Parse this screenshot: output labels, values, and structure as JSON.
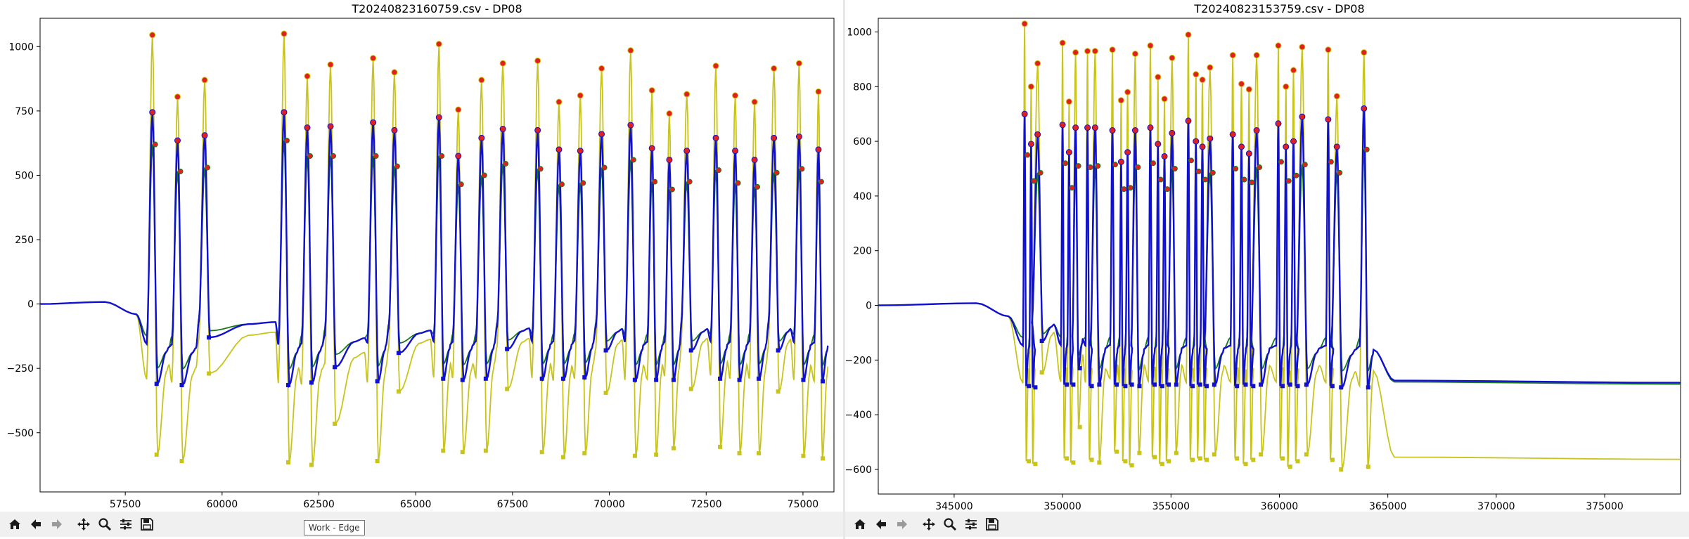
{
  "tooltip": "Work - Edge",
  "toolbar": {
    "icons": [
      "home-icon",
      "back-arrow-icon",
      "forward-arrow-icon",
      "pan-move-icon",
      "zoom-magnifier-icon",
      "configure-sliders-icon",
      "save-floppy-icon"
    ]
  },
  "colors": {
    "yellow": "#c8c41c",
    "blue": "#1010d0",
    "green": "#1a7a1a",
    "marker_red": "#e02020"
  },
  "chart_data": [
    {
      "type": "line",
      "title": "T20240823160759.csv - DP08",
      "xlim": [
        55300,
        75800
      ],
      "ylim": [
        -730,
        1110
      ],
      "xticks": [
        57500,
        60000,
        62500,
        65000,
        67500,
        70000,
        72500,
        75000
      ],
      "xtick_labels": [
        "57500",
        "60000",
        "62500",
        "65000",
        "67500",
        "70000",
        "72500",
        "75000"
      ],
      "yticks": [
        -500,
        -250,
        0,
        250,
        500,
        750,
        1000
      ],
      "ytick_labels": [
        "−500",
        "−250",
        "0",
        "250",
        "500",
        "750",
        "1000"
      ],
      "events": [
        {
          "x": 58200,
          "yellow_peak": 1045,
          "blue_peak": 745,
          "green_peak": 620,
          "yellow_trough": -585,
          "blue_trough": -310
        },
        {
          "x": 58850,
          "yellow_peak": 805,
          "blue_peak": 635,
          "green_peak": 515,
          "yellow_trough": -610,
          "blue_trough": -315
        },
        {
          "x": 59550,
          "yellow_peak": 870,
          "blue_peak": 655,
          "green_peak": 530,
          "yellow_trough": -270,
          "blue_trough": -130
        },
        {
          "x": 61600,
          "yellow_peak": 1050,
          "blue_peak": 745,
          "green_peak": 635,
          "yellow_trough": -615,
          "blue_trough": -315
        },
        {
          "x": 62200,
          "yellow_peak": 885,
          "blue_peak": 685,
          "green_peak": 575,
          "yellow_trough": -625,
          "blue_trough": -305
        },
        {
          "x": 62800,
          "yellow_peak": 930,
          "blue_peak": 690,
          "green_peak": 575,
          "yellow_trough": -465,
          "blue_trough": -245
        },
        {
          "x": 63900,
          "yellow_peak": 955,
          "blue_peak": 705,
          "green_peak": 575,
          "yellow_trough": -610,
          "blue_trough": -300
        },
        {
          "x": 64450,
          "yellow_peak": 900,
          "blue_peak": 675,
          "green_peak": 535,
          "yellow_trough": -340,
          "blue_trough": -190
        },
        {
          "x": 65600,
          "yellow_peak": 1010,
          "blue_peak": 725,
          "green_peak": 575,
          "yellow_trough": -570,
          "blue_trough": -290
        },
        {
          "x": 66100,
          "yellow_peak": 755,
          "blue_peak": 575,
          "green_peak": 465,
          "yellow_trough": -575,
          "blue_trough": -295
        },
        {
          "x": 66700,
          "yellow_peak": 870,
          "blue_peak": 645,
          "green_peak": 500,
          "yellow_trough": -570,
          "blue_trough": -290
        },
        {
          "x": 67250,
          "yellow_peak": 935,
          "blue_peak": 680,
          "green_peak": 545,
          "yellow_trough": -330,
          "blue_trough": -175
        },
        {
          "x": 68150,
          "yellow_peak": 945,
          "blue_peak": 675,
          "green_peak": 525,
          "yellow_trough": -575,
          "blue_trough": -290
        },
        {
          "x": 68700,
          "yellow_peak": 785,
          "blue_peak": 600,
          "green_peak": 465,
          "yellow_trough": -595,
          "blue_trough": -290
        },
        {
          "x": 69250,
          "yellow_peak": 810,
          "blue_peak": 595,
          "green_peak": 470,
          "yellow_trough": -580,
          "blue_trough": -285
        },
        {
          "x": 69800,
          "yellow_peak": 915,
          "blue_peak": 660,
          "green_peak": 530,
          "yellow_trough": -345,
          "blue_trough": -180
        },
        {
          "x": 70550,
          "yellow_peak": 985,
          "blue_peak": 695,
          "green_peak": 560,
          "yellow_trough": -590,
          "blue_trough": -295
        },
        {
          "x": 71100,
          "yellow_peak": 830,
          "blue_peak": 605,
          "green_peak": 475,
          "yellow_trough": -585,
          "blue_trough": -295
        },
        {
          "x": 71550,
          "yellow_peak": 740,
          "blue_peak": 560,
          "green_peak": 445,
          "yellow_trough": -560,
          "blue_trough": -295
        },
        {
          "x": 72000,
          "yellow_peak": 815,
          "blue_peak": 595,
          "green_peak": 475,
          "yellow_trough": -330,
          "blue_trough": -180
        },
        {
          "x": 72750,
          "yellow_peak": 925,
          "blue_peak": 645,
          "green_peak": 520,
          "yellow_trough": -555,
          "blue_trough": -290
        },
        {
          "x": 73250,
          "yellow_peak": 810,
          "blue_peak": 595,
          "green_peak": 470,
          "yellow_trough": -580,
          "blue_trough": -295
        },
        {
          "x": 73750,
          "yellow_peak": 785,
          "blue_peak": 560,
          "green_peak": 455,
          "yellow_trough": -580,
          "blue_trough": -290
        },
        {
          "x": 74250,
          "yellow_peak": 915,
          "blue_peak": 645,
          "green_peak": 510,
          "yellow_trough": -340,
          "blue_trough": -180
        },
        {
          "x": 74900,
          "yellow_peak": 935,
          "blue_peak": 650,
          "green_peak": 525,
          "yellow_trough": -590,
          "blue_trough": -295
        },
        {
          "x": 75400,
          "yellow_peak": 825,
          "blue_peak": 600,
          "green_peak": 475,
          "yellow_trough": -600,
          "blue_trough": -300
        }
      ]
    },
    {
      "type": "line",
      "title": "T20240823153759.csv - DP08",
      "xlim": [
        341500,
        378500
      ],
      "ylim": [
        -690,
        1050
      ],
      "xticks": [
        345000,
        350000,
        355000,
        360000,
        365000,
        370000,
        375000
      ],
      "xtick_labels": [
        "345000",
        "350000",
        "355000",
        "360000",
        "365000",
        "370000",
        "375000"
      ],
      "yticks": [
        -600,
        -400,
        -200,
        0,
        200,
        400,
        600,
        800,
        1000
      ],
      "ytick_labels": [
        "−600",
        "−400",
        "−200",
        "0",
        "200",
        "400",
        "600",
        "800",
        "1000"
      ],
      "baseline_after": {
        "x_start": 365300,
        "yellow": -555,
        "blue": -275,
        "green": -280
      },
      "events": [
        {
          "x": 348250,
          "yellow_peak": 1030,
          "blue_peak": 700,
          "green_peak": 550,
          "yellow_trough": -570,
          "blue_trough": -295
        },
        {
          "x": 348550,
          "yellow_peak": 800,
          "blue_peak": 590,
          "green_peak": 455,
          "yellow_trough": -580,
          "blue_trough": -300
        },
        {
          "x": 348850,
          "yellow_peak": 885,
          "blue_peak": 625,
          "green_peak": 485,
          "yellow_trough": -245,
          "blue_trough": -130
        },
        {
          "x": 350000,
          "yellow_peak": 960,
          "blue_peak": 660,
          "green_peak": 520,
          "yellow_trough": -560,
          "blue_trough": -290
        },
        {
          "x": 350300,
          "yellow_peak": 745,
          "blue_peak": 560,
          "green_peak": 430,
          "yellow_trough": -575,
          "blue_trough": -290
        },
        {
          "x": 350600,
          "yellow_peak": 925,
          "blue_peak": 650,
          "green_peak": 510,
          "yellow_trough": -445,
          "blue_trough": -230
        },
        {
          "x": 351150,
          "yellow_peak": 930,
          "blue_peak": 650,
          "green_peak": 505,
          "yellow_trough": -565,
          "blue_trough": -295
        },
        {
          "x": 351500,
          "yellow_peak": 930,
          "blue_peak": 650,
          "green_peak": 510,
          "yellow_trough": -575,
          "blue_trough": -290
        },
        {
          "x": 352300,
          "yellow_peak": 935,
          "blue_peak": 640,
          "green_peak": 515,
          "yellow_trough": -535,
          "blue_trough": -290
        },
        {
          "x": 352700,
          "yellow_peak": 750,
          "blue_peak": 525,
          "green_peak": 425,
          "yellow_trough": -570,
          "blue_trough": -295
        },
        {
          "x": 353000,
          "yellow_peak": 780,
          "blue_peak": 560,
          "green_peak": 430,
          "yellow_trough": -585,
          "blue_trough": -290
        },
        {
          "x": 353350,
          "yellow_peak": 920,
          "blue_peak": 640,
          "green_peak": 505,
          "yellow_trough": -540,
          "blue_trough": -295
        },
        {
          "x": 354050,
          "yellow_peak": 950,
          "blue_peak": 650,
          "green_peak": 520,
          "yellow_trough": -555,
          "blue_trough": -290
        },
        {
          "x": 354400,
          "yellow_peak": 835,
          "blue_peak": 590,
          "green_peak": 460,
          "yellow_trough": -580,
          "blue_trough": -295
        },
        {
          "x": 354700,
          "yellow_peak": 755,
          "blue_peak": 545,
          "green_peak": 425,
          "yellow_trough": -570,
          "blue_trough": -290
        },
        {
          "x": 355050,
          "yellow_peak": 905,
          "blue_peak": 630,
          "green_peak": 500,
          "yellow_trough": -540,
          "blue_trough": -290
        },
        {
          "x": 355800,
          "yellow_peak": 990,
          "blue_peak": 675,
          "green_peak": 530,
          "yellow_trough": -565,
          "blue_trough": -295
        },
        {
          "x": 356150,
          "yellow_peak": 845,
          "blue_peak": 600,
          "green_peak": 490,
          "yellow_trough": -560,
          "blue_trough": -290
        },
        {
          "x": 356450,
          "yellow_peak": 825,
          "blue_peak": 580,
          "green_peak": 460,
          "yellow_trough": -565,
          "blue_trough": -295
        },
        {
          "x": 356800,
          "yellow_peak": 870,
          "blue_peak": 610,
          "green_peak": 485,
          "yellow_trough": -545,
          "blue_trough": -290
        },
        {
          "x": 357850,
          "yellow_peak": 915,
          "blue_peak": 625,
          "green_peak": 500,
          "yellow_trough": -560,
          "blue_trough": -295
        },
        {
          "x": 358250,
          "yellow_peak": 810,
          "blue_peak": 580,
          "green_peak": 460,
          "yellow_trough": -580,
          "blue_trough": -290
        },
        {
          "x": 358600,
          "yellow_peak": 790,
          "blue_peak": 555,
          "green_peak": 450,
          "yellow_trough": -565,
          "blue_trough": -295
        },
        {
          "x": 358950,
          "yellow_peak": 915,
          "blue_peak": 640,
          "green_peak": 505,
          "yellow_trough": -545,
          "blue_trough": -290
        },
        {
          "x": 359950,
          "yellow_peak": 950,
          "blue_peak": 665,
          "green_peak": 525,
          "yellow_trough": -560,
          "blue_trough": -295
        },
        {
          "x": 360300,
          "yellow_peak": 800,
          "blue_peak": 580,
          "green_peak": 455,
          "yellow_trough": -590,
          "blue_trough": -290
        },
        {
          "x": 360650,
          "yellow_peak": 860,
          "blue_peak": 600,
          "green_peak": 475,
          "yellow_trough": -570,
          "blue_trough": -295
        },
        {
          "x": 361050,
          "yellow_peak": 945,
          "blue_peak": 690,
          "green_peak": 515,
          "yellow_trough": -545,
          "blue_trough": -290
        },
        {
          "x": 362250,
          "yellow_peak": 935,
          "blue_peak": 680,
          "green_peak": 525,
          "yellow_trough": -565,
          "blue_trough": -295
        },
        {
          "x": 362650,
          "yellow_peak": 765,
          "blue_peak": 580,
          "green_peak": 485,
          "yellow_trough": -600,
          "blue_trough": -300
        },
        {
          "x": 363900,
          "yellow_peak": 925,
          "blue_peak": 720,
          "green_peak": 570,
          "yellow_trough": -590,
          "blue_trough": -300
        }
      ]
    }
  ]
}
